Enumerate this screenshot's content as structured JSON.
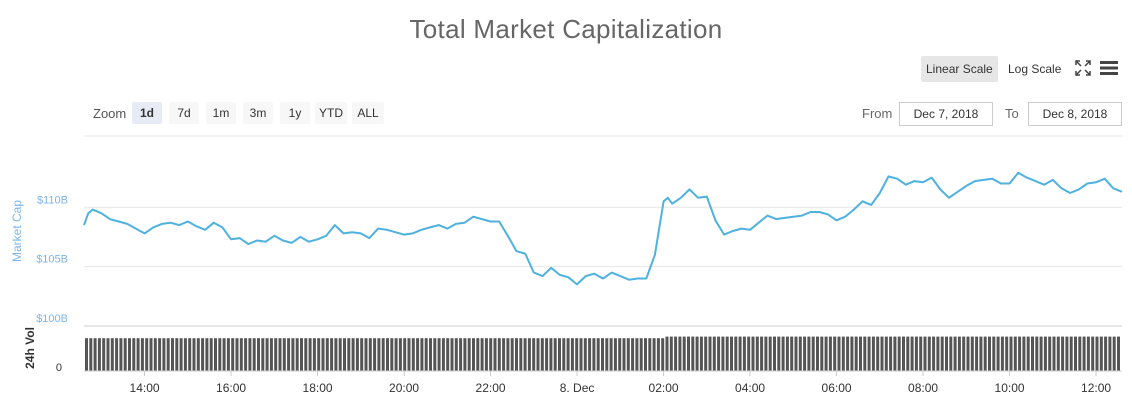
{
  "title": "Total Market Capitalization",
  "scale_buttons": {
    "linear": "Linear Scale",
    "log": "Log Scale"
  },
  "icons": {
    "fullscreen": "fullscreen-icon",
    "menu": "menu-icon"
  },
  "zoom": {
    "label": "Zoom",
    "options": [
      "1d",
      "7d",
      "1m",
      "3m",
      "1y",
      "YTD",
      "ALL"
    ],
    "active": "1d"
  },
  "range": {
    "from_label": "From",
    "from_value": "Dec 7, 2018",
    "to_label": "To",
    "to_value": "Dec 8, 2018"
  },
  "colors": {
    "line": "#4fb1de",
    "volume": "#555555",
    "grid": "#e6e6e6",
    "ylabel": "#7cb5ec"
  },
  "chart_data": {
    "type": "line",
    "title": "Total Market Capitalization",
    "ylabel": "Market Cap",
    "ylabel_volume": "24h Vol",
    "y_ticks": [
      "$100B",
      "$105B",
      "$110B"
    ],
    "volume_ticks": [
      "0"
    ],
    "x_ticks": [
      "14:00",
      "16:00",
      "18:00",
      "20:00",
      "22:00",
      "8. Dec",
      "02:00",
      "04:00",
      "06:00",
      "08:00",
      "10:00",
      "12:00"
    ],
    "ylim": [
      100,
      116
    ],
    "xlim": [
      12.6,
      36.6
    ],
    "scale": "linear",
    "grid": true,
    "market_cap_series": {
      "x": [
        12.6,
        12.7,
        12.8,
        13.0,
        13.2,
        13.4,
        13.6,
        13.8,
        14.0,
        14.2,
        14.4,
        14.6,
        14.8,
        15.0,
        15.2,
        15.4,
        15.6,
        15.8,
        16.0,
        16.2,
        16.4,
        16.6,
        16.8,
        17.0,
        17.2,
        17.4,
        17.6,
        17.8,
        18.0,
        18.2,
        18.4,
        18.6,
        18.8,
        19.0,
        19.2,
        19.4,
        19.6,
        19.8,
        20.0,
        20.2,
        20.4,
        20.6,
        20.8,
        21.0,
        21.2,
        21.4,
        21.6,
        21.8,
        22.0,
        22.2,
        22.4,
        22.6,
        22.8,
        23.0,
        23.2,
        23.4,
        23.6,
        23.8,
        24.0,
        24.2,
        24.4,
        24.6,
        24.8,
        25.0,
        25.2,
        25.4,
        25.6,
        25.8,
        26.0,
        26.1,
        26.2,
        26.4,
        26.6,
        26.8,
        27.0,
        27.2,
        27.4,
        27.6,
        27.8,
        28.0,
        28.2,
        28.4,
        28.6,
        28.8,
        29.0,
        29.2,
        29.4,
        29.6,
        29.8,
        30.0,
        30.2,
        30.4,
        30.6,
        30.8,
        31.0,
        31.2,
        31.4,
        31.6,
        31.8,
        32.0,
        32.2,
        32.4,
        32.6,
        32.8,
        33.0,
        33.2,
        33.4,
        33.6,
        33.8,
        34.0,
        34.2,
        34.4,
        34.6,
        34.8,
        35.0,
        35.2,
        35.4,
        35.6,
        35.8,
        36.0,
        36.2,
        36.4,
        36.6
      ],
      "y": [
        108.5,
        109.5,
        109.8,
        109.5,
        109.0,
        108.8,
        108.6,
        108.2,
        107.8,
        108.3,
        108.6,
        108.7,
        108.5,
        108.8,
        108.4,
        108.1,
        108.7,
        108.3,
        107.3,
        107.4,
        106.9,
        107.2,
        107.1,
        107.6,
        107.2,
        107.0,
        107.5,
        107.1,
        107.3,
        107.6,
        108.5,
        107.8,
        107.9,
        107.8,
        107.4,
        108.2,
        108.1,
        107.9,
        107.7,
        107.8,
        108.1,
        108.3,
        108.5,
        108.2,
        108.6,
        108.7,
        109.2,
        109.0,
        108.8,
        108.8,
        107.6,
        106.3,
        106.1,
        104.5,
        104.2,
        104.9,
        104.3,
        104.1,
        103.5,
        104.2,
        104.4,
        104.0,
        104.5,
        104.2,
        103.9,
        104.0,
        104.0,
        106.0,
        110.5,
        110.8,
        110.3,
        110.8,
        111.5,
        110.8,
        110.9,
        108.9,
        107.7,
        108.0,
        108.2,
        108.1,
        108.7,
        109.3,
        109.0,
        109.1,
        109.2,
        109.3,
        109.6,
        109.6,
        109.4,
        108.9,
        109.2,
        109.8,
        110.5,
        110.2,
        111.2,
        112.6,
        112.4,
        111.9,
        112.2,
        112.1,
        112.5,
        111.5,
        110.8,
        111.3,
        111.8,
        112.2,
        112.3,
        112.4,
        112.0,
        112.0,
        112.9,
        112.5,
        112.2,
        111.9,
        112.3,
        111.6,
        111.2,
        111.5,
        112.0,
        112.1,
        112.4,
        111.6,
        111.3
      ]
    },
    "volume_series": {
      "note_range": [
        12.6,
        36.6
      ],
      "x_breaks": [
        12.6,
        26.0,
        36.6
      ],
      "levels": [
        0.78,
        0.82
      ]
    }
  }
}
